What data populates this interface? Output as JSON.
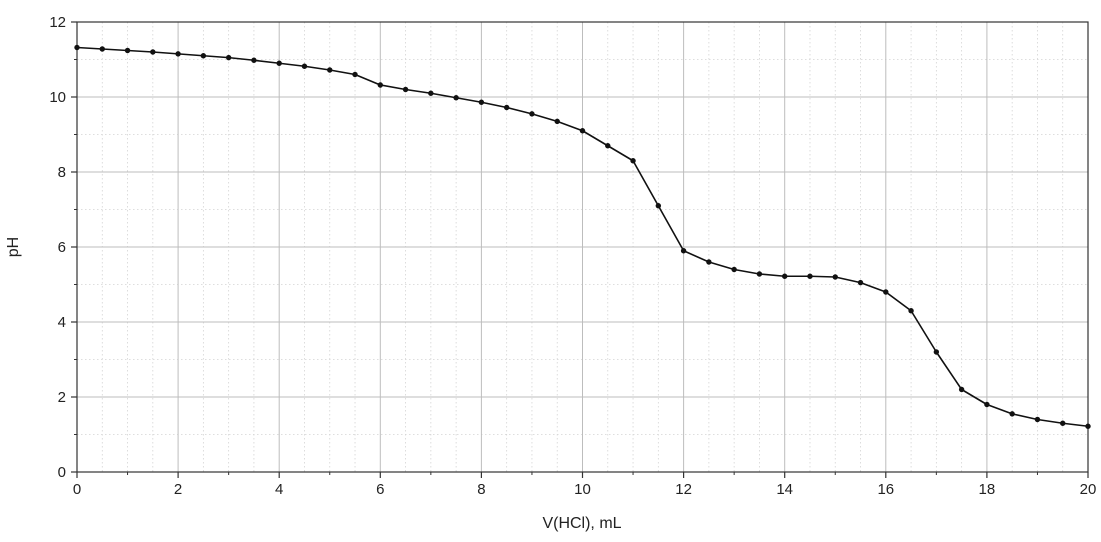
{
  "chart_data": {
    "type": "line",
    "title": "",
    "xlabel": "V(HCl), mL",
    "ylabel": "pH",
    "xlim": [
      0,
      20
    ],
    "ylim": [
      0,
      12
    ],
    "x_ticks": [
      "0",
      "2",
      "4",
      "6",
      "8",
      "10",
      "12",
      "14",
      "16",
      "18",
      "20"
    ],
    "y_ticks": [
      "0",
      "2",
      "4",
      "6",
      "8",
      "10",
      "12"
    ],
    "grid": "major solid, minor dotted",
    "markers": "filled circles",
    "series": [
      {
        "x": [
          0,
          0.5,
          1,
          1.5,
          2,
          2.5,
          3,
          3.5,
          4,
          4.5,
          5,
          5.5,
          6,
          6.5,
          7,
          7.5,
          8,
          8.5,
          9,
          9.5,
          10,
          10.5,
          11,
          11.5,
          12,
          12.5,
          13,
          13.5,
          14,
          14.5,
          15,
          15.5,
          16,
          16.5,
          17,
          17.5,
          18,
          18.5,
          19,
          19.5,
          20
        ],
        "y": [
          11.32,
          11.28,
          11.24,
          11.2,
          11.15,
          11.1,
          11.05,
          10.98,
          10.9,
          10.82,
          10.72,
          10.6,
          10.32,
          10.2,
          10.1,
          9.98,
          9.86,
          9.72,
          9.55,
          9.35,
          9.1,
          8.7,
          8.3,
          7.1,
          5.9,
          5.6,
          5.4,
          5.28,
          5.22,
          5.22,
          5.2,
          5.05,
          4.8,
          4.3,
          3.2,
          2.2,
          1.8,
          1.55,
          1.4,
          1.3,
          1.22
        ]
      }
    ],
    "colors": {
      "line": "#111111",
      "major_grid": "#bdbdbd",
      "minor_grid": "#d4d4d4",
      "axis": "#333333"
    }
  }
}
